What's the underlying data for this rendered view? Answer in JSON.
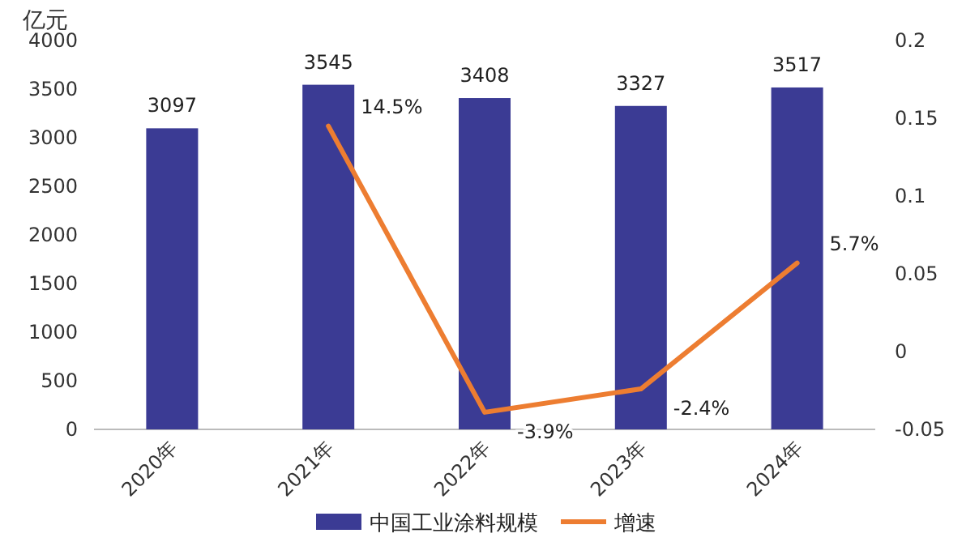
{
  "chart_data": {
    "type": "bar",
    "ylabel": "亿元",
    "categories": [
      "2020年",
      "2021年",
      "2022年",
      "2023年",
      "2024年"
    ],
    "series": [
      {
        "name": "中国工业涂料规模",
        "color": "#3b3b94",
        "values": [
          3097,
          3545,
          3408,
          3327,
          3517
        ],
        "value_labels": [
          "3097",
          "3545",
          "3408",
          "3327",
          "3517"
        ]
      },
      {
        "name": "增速",
        "type": "line",
        "axis": "y2",
        "color": "#ed7d31",
        "values": [
          null,
          0.145,
          -0.039,
          -0.024,
          0.057
        ],
        "value_labels": [
          null,
          "14.5%",
          "-3.9%",
          "-2.4%",
          "5.7%"
        ]
      }
    ],
    "ylim": [
      0,
      4000
    ],
    "yticks": [
      0,
      500,
      1000,
      1500,
      2000,
      2500,
      3000,
      3500,
      4000
    ],
    "y2lim": [
      -0.05,
      0.2
    ],
    "y2ticks": [
      -0.05,
      0,
      0.05,
      0.1,
      0.15,
      0.2
    ],
    "legend": "bottom"
  }
}
